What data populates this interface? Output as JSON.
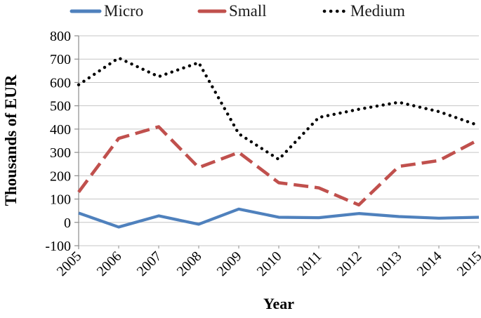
{
  "chart_data": {
    "type": "line",
    "title": "",
    "xlabel": "Year",
    "ylabel": "Thousands of EUR",
    "x": [
      2005,
      2006,
      2007,
      2008,
      2009,
      2010,
      2011,
      2012,
      2013,
      2014,
      2015
    ],
    "series": [
      {
        "name": "Micro",
        "color": "#4F81BD",
        "style": "solid",
        "values": [
          40,
          -20,
          28,
          -8,
          57,
          22,
          20,
          38,
          25,
          18,
          22
        ]
      },
      {
        "name": "Small",
        "color": "#C0504D",
        "style": "dashed",
        "values": [
          130,
          360,
          410,
          235,
          300,
          170,
          148,
          75,
          240,
          265,
          355
        ]
      },
      {
        "name": "Medium",
        "color": "#000000",
        "style": "dotted",
        "values": [
          590,
          705,
          625,
          685,
          380,
          270,
          450,
          485,
          515,
          475,
          415
        ]
      }
    ],
    "ylim": [
      -100,
      800
    ],
    "ytick_step": 100,
    "yticks": [
      800,
      700,
      600,
      500,
      400,
      300,
      200,
      100,
      0,
      -100
    ],
    "grid": true,
    "legend_position": "top",
    "gridline_color": "#C6C6C6",
    "axis_color": "#8C8C8C",
    "text_color": "#000000"
  }
}
